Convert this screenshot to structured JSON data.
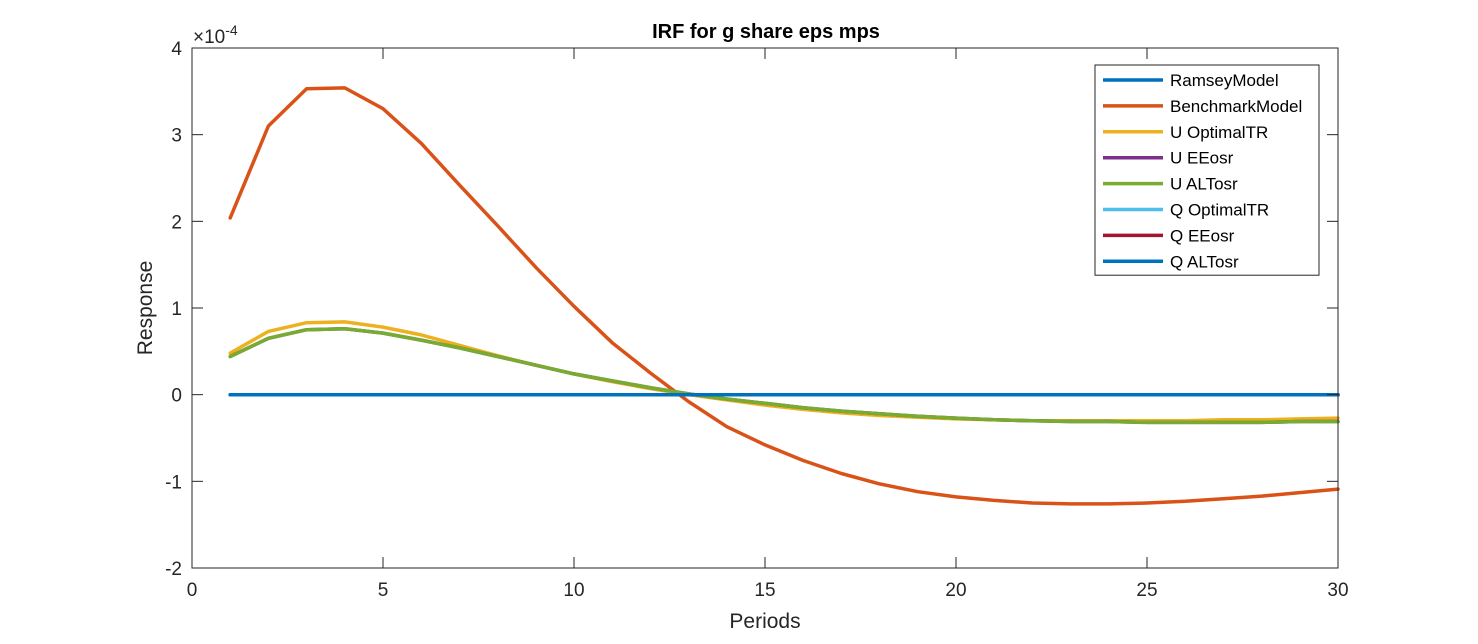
{
  "chart_data": {
    "type": "line",
    "title": "IRF for g share eps mps",
    "xlabel": "Periods",
    "ylabel": "Response",
    "xlim": [
      0,
      30
    ],
    "ylim": [
      -2,
      4
    ],
    "y_scale_label": "×10",
    "y_scale_exponent": "-4",
    "x_ticks": [
      "0",
      "5",
      "10",
      "15",
      "20",
      "25",
      "30"
    ],
    "y_ticks": [
      "-2",
      "-1",
      "0",
      "1",
      "2",
      "3",
      "4"
    ],
    "grid": false,
    "legend_position": "top-right",
    "x": [
      1,
      2,
      3,
      4,
      5,
      6,
      7,
      8,
      9,
      10,
      11,
      12,
      13,
      14,
      15,
      16,
      17,
      18,
      19,
      20,
      21,
      22,
      23,
      24,
      25,
      26,
      27,
      28,
      29,
      30
    ],
    "series": [
      {
        "name": "RamseyModel",
        "color": "#0072BD",
        "values": [
          0,
          0,
          0,
          0,
          0,
          0,
          0,
          0,
          0,
          0,
          0,
          0,
          0,
          0,
          0,
          0,
          0,
          0,
          0,
          0,
          0,
          0,
          0,
          0,
          0,
          0,
          0,
          0,
          0,
          0
        ]
      },
      {
        "name": "BenchmarkModel",
        "color": "#D95319",
        "values": [
          2.04,
          3.1,
          3.53,
          3.54,
          3.3,
          2.9,
          2.42,
          1.95,
          1.47,
          1.02,
          0.6,
          0.25,
          -0.08,
          -0.37,
          -0.58,
          -0.76,
          -0.91,
          -1.03,
          -1.12,
          -1.18,
          -1.22,
          -1.25,
          -1.26,
          -1.26,
          -1.25,
          -1.23,
          -1.2,
          -1.17,
          -1.13,
          -1.09
        ]
      },
      {
        "name": "U OptimalTR",
        "color": "#EDB120",
        "values": [
          0.48,
          0.73,
          0.83,
          0.84,
          0.78,
          0.69,
          0.57,
          0.45,
          0.34,
          0.24,
          0.15,
          0.07,
          0.0,
          -0.06,
          -0.12,
          -0.17,
          -0.21,
          -0.24,
          -0.26,
          -0.28,
          -0.29,
          -0.3,
          -0.3,
          -0.3,
          -0.3,
          -0.3,
          -0.29,
          -0.29,
          -0.28,
          -0.27
        ]
      },
      {
        "name": "U EEosr",
        "color": "#7E2F8E",
        "values": [
          0.44,
          0.65,
          0.75,
          0.76,
          0.71,
          0.63,
          0.54,
          0.44,
          0.34,
          0.24,
          0.16,
          0.08,
          0.01,
          -0.05,
          -0.1,
          -0.15,
          -0.19,
          -0.22,
          -0.25,
          -0.27,
          -0.29,
          -0.3,
          -0.31,
          -0.31,
          -0.32,
          -0.32,
          -0.32,
          -0.32,
          -0.31,
          -0.31
        ]
      },
      {
        "name": "U ALTosr",
        "color": "#77AC30",
        "values": [
          0.44,
          0.65,
          0.75,
          0.76,
          0.71,
          0.63,
          0.54,
          0.44,
          0.34,
          0.24,
          0.16,
          0.08,
          0.01,
          -0.05,
          -0.1,
          -0.15,
          -0.19,
          -0.22,
          -0.25,
          -0.27,
          -0.29,
          -0.3,
          -0.31,
          -0.31,
          -0.32,
          -0.32,
          -0.32,
          -0.32,
          -0.31,
          -0.31
        ]
      },
      {
        "name": "Q OptimalTR",
        "color": "#4DBEEE",
        "values": [
          0,
          0,
          0,
          0,
          0,
          0,
          0,
          0,
          0,
          0,
          0,
          0,
          0,
          0,
          0,
          0,
          0,
          0,
          0,
          0,
          0,
          0,
          0,
          0,
          0,
          0,
          0,
          0,
          0,
          0
        ]
      },
      {
        "name": "Q EEosr",
        "color": "#A2142F",
        "values": [
          0,
          0,
          0,
          0,
          0,
          0,
          0,
          0,
          0,
          0,
          0,
          0,
          0,
          0,
          0,
          0,
          0,
          0,
          0,
          0,
          0,
          0,
          0,
          0,
          0,
          0,
          0,
          0,
          0,
          0
        ]
      },
      {
        "name": "Q ALTosr",
        "color": "#0072BD",
        "values": [
          0,
          0,
          0,
          0,
          0,
          0,
          0,
          0,
          0,
          0,
          0,
          0,
          0,
          0,
          0,
          0,
          0,
          0,
          0,
          0,
          0,
          0,
          0,
          0,
          0,
          0,
          0,
          0,
          0,
          0
        ]
      }
    ]
  }
}
